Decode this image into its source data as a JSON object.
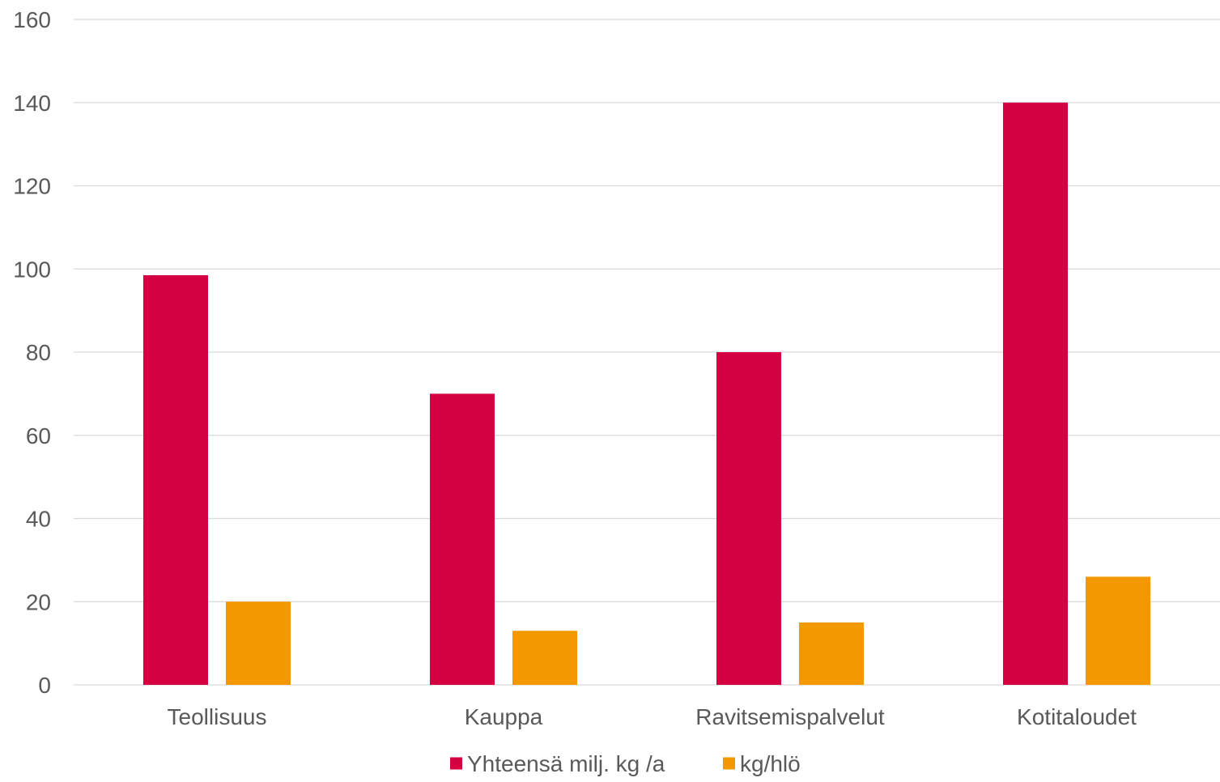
{
  "chart_data": {
    "type": "bar",
    "categories": [
      "Teollisuus",
      "Kauppa",
      "Ravitsemispalvelut",
      "Kotitaloudet"
    ],
    "series": [
      {
        "name": "Yhteensä milj. kg /a",
        "values": [
          98.5,
          70,
          80,
          140
        ],
        "color": "#d50041"
      },
      {
        "name": "kg/hlö",
        "values": [
          20,
          13,
          15,
          26
        ],
        "color": "#f39800"
      }
    ],
    "ylim": [
      0,
      160
    ],
    "yticks": [
      "0",
      "20",
      "40",
      "60",
      "80",
      "100",
      "120",
      "140",
      "160"
    ],
    "grid": true,
    "legend_position": "bottom-center",
    "colors": {
      "gridline": "#d9d9d9",
      "tick_text": "#595959"
    }
  }
}
